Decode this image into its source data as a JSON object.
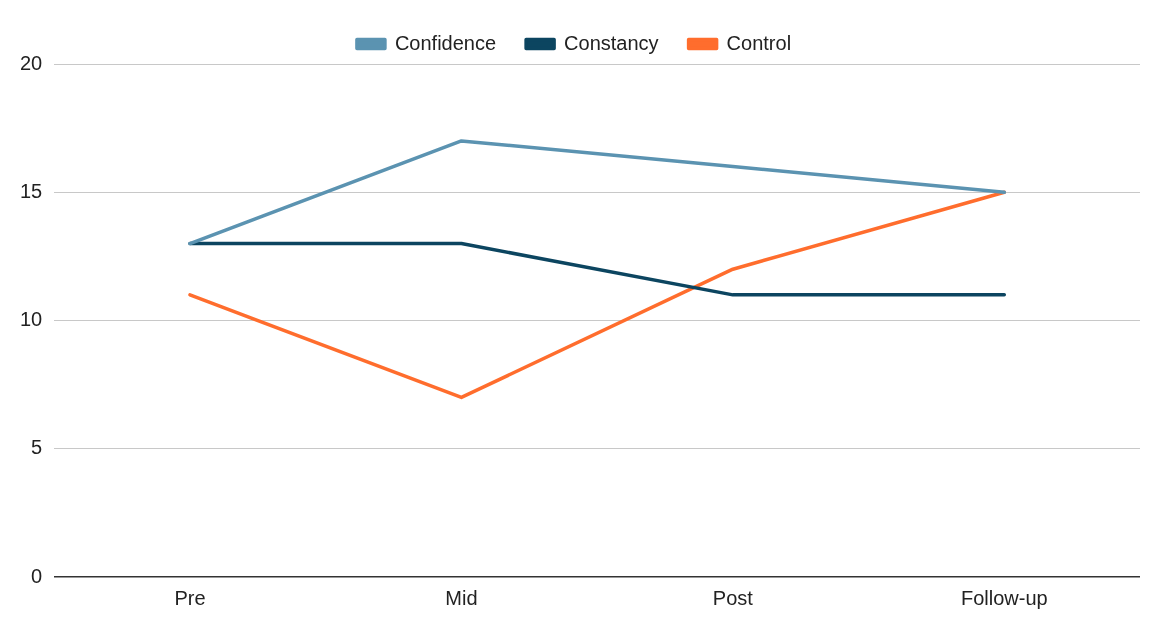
{
  "chart_data": {
    "type": "line",
    "categories": [
      "Pre",
      "Mid",
      "Post",
      "Follow-up"
    ],
    "series": [
      {
        "name": "Confidence",
        "color": "#5b93b1",
        "values": [
          13,
          17,
          16,
          15
        ]
      },
      {
        "name": "Constancy",
        "color": "#0c4560",
        "values": [
          13,
          13,
          11,
          11
        ]
      },
      {
        "name": "Control",
        "color": "#ff6d2d",
        "values": [
          11,
          7,
          12,
          15
        ]
      }
    ],
    "ylim": [
      0,
      20
    ],
    "yticks": [
      0,
      5,
      10,
      15,
      20
    ],
    "grid": "y",
    "legend": "top",
    "marker": "none",
    "line_style": "solid"
  }
}
